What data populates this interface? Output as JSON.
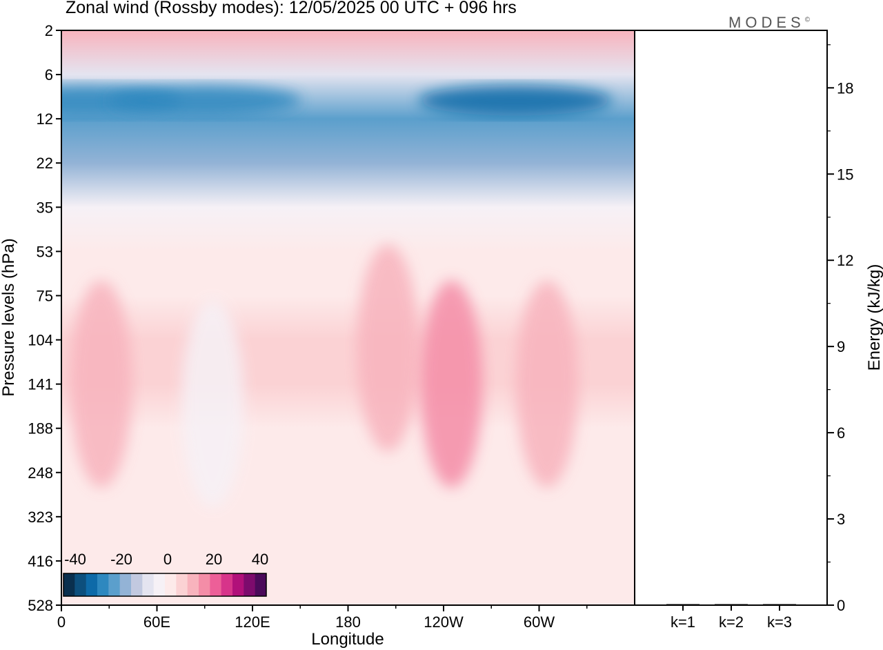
{
  "title": "Zonal wind (Rossby modes):  12/05/2025  00 UTC  + 096 hrs",
  "logo": "MODES",
  "logo_mark": "©",
  "chart_data": [
    {
      "type": "heatmap",
      "xlabel": "Longitude",
      "ylabel": "Pressure levels (hPa)",
      "x_ticks": [
        "0",
        "60E",
        "120E",
        "180",
        "120W",
        "60W"
      ],
      "y_ticks": [
        "2",
        "6",
        "12",
        "22",
        "35",
        "53",
        "75",
        "104",
        "141",
        "188",
        "248",
        "323",
        "416",
        "528"
      ],
      "colorbar": {
        "tick_labels": [
          "-40",
          "-20",
          "0",
          "20",
          "40"
        ],
        "range": [
          -45,
          45
        ],
        "colors": [
          "#0a2f4e",
          "#0d4f7d",
          "#0e6aa8",
          "#2e88bf",
          "#5b9fcc",
          "#93b3d6",
          "#c2c9e0",
          "#e4e4f0",
          "#f6f1f6",
          "#fdeaea",
          "#fbd2d4",
          "#f8b3bd",
          "#f48da7",
          "#ed5f98",
          "#d7348a",
          "#b1107a",
          "#7d0b6d",
          "#4b0a5a"
        ]
      },
      "levels_hPa": [
        2,
        6,
        12,
        22,
        35,
        53,
        75,
        104,
        141,
        188,
        248,
        323,
        416,
        528
      ],
      "zonal_mean_wind": [
        10,
        -6,
        -25,
        -18,
        -2,
        4,
        3,
        5,
        5,
        4,
        3,
        2,
        1,
        1
      ],
      "features": [
        {
          "lon": 25,
          "level": 141,
          "value": 12
        },
        {
          "lon": 95,
          "level": 160,
          "value": -3
        },
        {
          "lon": 205,
          "level": 110,
          "value": 10
        },
        {
          "lon": 245,
          "level": 141,
          "value": 16
        },
        {
          "lon": 305,
          "level": 141,
          "value": 12
        },
        {
          "lon": 15,
          "level": 9,
          "value": -30
        },
        {
          "lon": 90,
          "level": 9,
          "value": -30
        },
        {
          "lon": 285,
          "level": 9,
          "value": -32
        }
      ]
    },
    {
      "type": "bar",
      "ylabel": "Energy (kJ/kg)",
      "categories": [
        "k=1",
        "k=2",
        "k=3"
      ],
      "values": [
        0.02,
        0.02,
        0.01
      ],
      "ylim": [
        0,
        20
      ],
      "y_ticks": [
        "0",
        "3",
        "6",
        "9",
        "12",
        "15",
        "18"
      ]
    }
  ]
}
